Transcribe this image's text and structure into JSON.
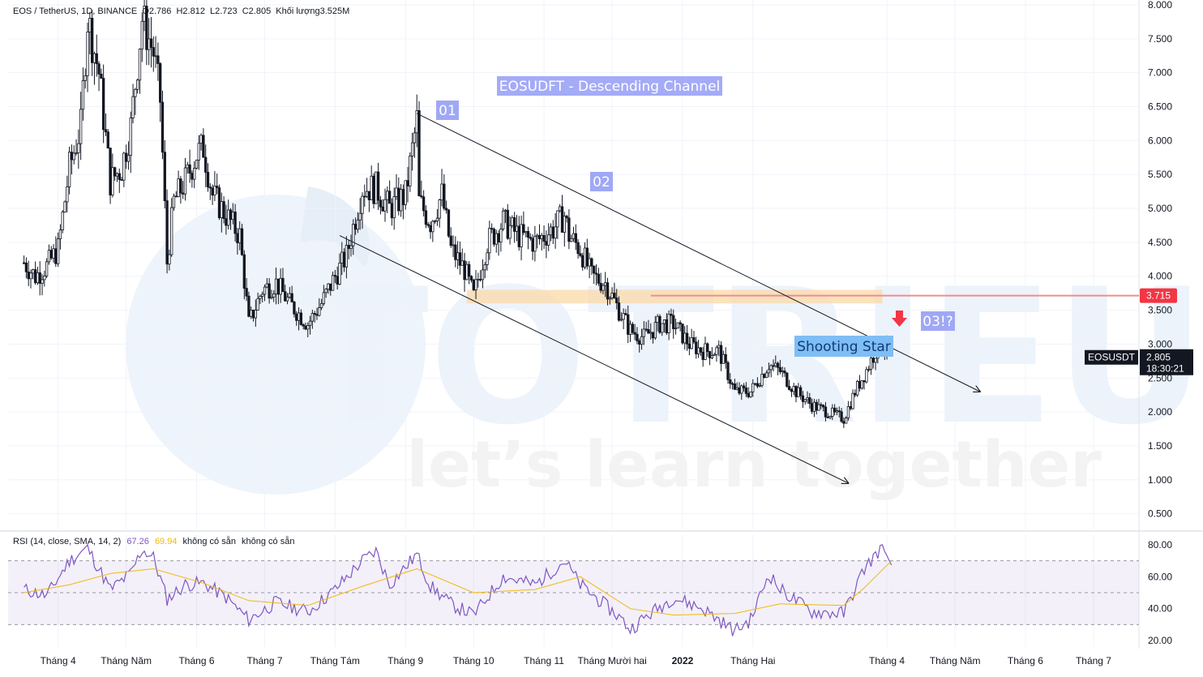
{
  "header": {
    "symbol_title": "EOS / TetherUS, 1D, BINANCE",
    "open": "O2.786",
    "high": "H2.812",
    "low": "L2.723",
    "close": "C2.805",
    "volume": "Khối lượng3.525M"
  },
  "rsi_header": {
    "label": "RSI (14, close, SMA, 14, 2)",
    "value": "67.26",
    "sma_value": "69.94",
    "na1": "không có sẵn",
    "na2": "không có sẵn"
  },
  "annotations": {
    "channel_title": "EOSUDFT - Descending Channel",
    "point1": "01",
    "point2": "02",
    "point3": "03!?",
    "shooting_star": "Shooting Star"
  },
  "price_labels": {
    "resistance": "3.715",
    "symbol": "EOSUSDT",
    "last_price": "2.805",
    "countdown": "18:30:21"
  },
  "watermark": {
    "brand": "TOTRIEU",
    "slogan": "let’s learn together"
  },
  "colors": {
    "up": "#131722",
    "down": "#131722",
    "resistance_line": "#f28b8b",
    "resistance_label": "#f23645",
    "zone": "#f9d9a8",
    "rsi_line": "#7e57c2",
    "rsi_sma": "#f0b90b",
    "label_bg": "#9fa8f5",
    "label_text": "#ffffff",
    "arrow_red": "#f23645"
  },
  "chart_data": [
    {
      "type": "candlestick",
      "title": "EOS / TetherUS, 1D, BINANCE",
      "x_labels": [
        "Tháng 4",
        "Tháng Năm",
        "Tháng 6",
        "Tháng 7",
        "Tháng Tám",
        "Tháng 9",
        "Tháng 10",
        "Tháng 11",
        "Tháng Mười hai",
        "2022",
        "Tháng Hai",
        "Tháng 4",
        "Tháng Năm",
        "Tháng 6",
        "Tháng 7"
      ],
      "y_ticks": [
        "8.000",
        "7.500",
        "7.000",
        "6.500",
        "6.000",
        "5.500",
        "5.000",
        "4.500",
        "4.000",
        "3.500",
        "3.000",
        "2.500",
        "2.000",
        "1.500",
        "1.000",
        "0.500"
      ],
      "ylim": [
        0.4,
        8.0
      ],
      "price_path": [
        [
          "2021-03-17",
          4.2
        ],
        [
          "2021-03-22",
          4.0
        ],
        [
          "2021-03-27",
          4.15
        ],
        [
          "2021-04-01",
          4.4
        ],
        [
          "2021-04-06",
          5.6
        ],
        [
          "2021-04-11",
          6.2
        ],
        [
          "2021-04-14",
          7.8
        ],
        [
          "2021-04-19",
          7.0
        ],
        [
          "2021-04-24",
          5.4
        ],
        [
          "2021-04-29",
          5.6
        ],
        [
          "2021-05-03",
          6.2
        ],
        [
          "2021-05-08",
          7.8
        ],
        [
          "2021-05-13",
          7.3
        ],
        [
          "2021-05-16",
          6.6
        ],
        [
          "2021-05-19",
          4.2
        ],
        [
          "2021-05-22",
          5.1
        ],
        [
          "2021-05-27",
          5.4
        ],
        [
          "2021-06-01",
          5.8
        ],
        [
          "2021-06-04",
          5.9
        ],
        [
          "2021-06-08",
          5.2
        ],
        [
          "2021-06-14",
          4.9
        ],
        [
          "2021-06-20",
          4.6
        ],
        [
          "2021-06-24",
          3.3
        ],
        [
          "2021-06-30",
          3.8
        ],
        [
          "2021-07-06",
          3.9
        ],
        [
          "2021-07-12",
          3.6
        ],
        [
          "2021-07-20",
          3.3
        ],
        [
          "2021-07-26",
          3.6
        ],
        [
          "2021-08-01",
          4.0
        ],
        [
          "2021-08-06",
          4.3
        ],
        [
          "2021-08-13",
          5.3
        ],
        [
          "2021-08-19",
          5.3
        ],
        [
          "2021-08-25",
          5.0
        ],
        [
          "2021-09-01",
          5.2
        ],
        [
          "2021-09-06",
          6.3
        ],
        [
          "2021-09-07",
          5.1
        ],
        [
          "2021-09-12",
          4.8
        ],
        [
          "2021-09-17",
          5.2
        ],
        [
          "2021-09-21",
          4.4
        ],
        [
          "2021-09-27",
          4.1
        ],
        [
          "2021-10-01",
          3.7
        ],
        [
          "2021-10-07",
          4.5
        ],
        [
          "2021-10-14",
          4.8
        ],
        [
          "2021-10-21",
          4.6
        ],
        [
          "2021-10-28",
          4.5
        ],
        [
          "2021-11-05",
          4.7
        ],
        [
          "2021-11-10",
          4.9
        ],
        [
          "2021-11-12",
          4.6
        ],
        [
          "2021-11-17",
          4.4
        ],
        [
          "2021-11-22",
          4.0
        ],
        [
          "2021-11-28",
          3.9
        ],
        [
          "2021-12-04",
          3.5
        ],
        [
          "2021-12-09",
          3.2
        ],
        [
          "2021-12-15",
          3.1
        ],
        [
          "2021-12-22",
          3.3
        ],
        [
          "2021-12-28",
          3.3
        ],
        [
          "2022-01-04",
          3.0
        ],
        [
          "2022-01-10",
          2.9
        ],
        [
          "2022-01-17",
          2.9
        ],
        [
          "2022-01-24",
          2.3
        ],
        [
          "2022-01-31",
          2.3
        ],
        [
          "2022-02-08",
          2.7
        ],
        [
          "2022-02-13",
          2.6
        ],
        [
          "2022-02-20",
          2.3
        ],
        [
          "2022-02-27",
          2.1
        ],
        [
          "2022-03-06",
          2.0
        ],
        [
          "2022-03-13",
          1.9
        ],
        [
          "2022-03-18",
          2.3
        ],
        [
          "2022-03-22",
          2.55
        ],
        [
          "2022-03-27",
          2.9
        ],
        [
          "2022-03-30",
          3.0
        ],
        [
          "2022-04-03",
          2.805
        ]
      ],
      "channel_upper": [
        [
          "2021-09-06",
          6.4
        ],
        [
          "2022-05-12",
          2.3
        ]
      ],
      "channel_lower": [
        [
          "2021-08-03",
          4.6
        ],
        [
          "2022-03-15",
          0.95
        ]
      ],
      "resistance_level": 3.715,
      "support_zone": [
        3.6,
        3.8
      ],
      "last_price": 2.805
    },
    {
      "type": "line",
      "title": "RSI (14, close, SMA, 14, 2)",
      "y_ticks": [
        "80.00",
        "60.00",
        "40.00",
        "20.00"
      ],
      "ylim": [
        17,
        83
      ],
      "bands": [
        70,
        50,
        30
      ],
      "series": [
        {
          "name": "RSI",
          "values": [
            [
              "2021-03-17",
              52
            ],
            [
              "2021-03-27",
              48
            ],
            [
              "2021-04-06",
              70
            ],
            [
              "2021-04-14",
              78
            ],
            [
              "2021-04-24",
              52
            ],
            [
              "2021-05-03",
              62
            ],
            [
              "2021-05-08",
              77
            ],
            [
              "2021-05-13",
              72
            ],
            [
              "2021-05-19",
              46
            ],
            [
              "2021-05-27",
              55
            ],
            [
              "2021-06-04",
              56
            ],
            [
              "2021-06-14",
              47
            ],
            [
              "2021-06-24",
              33
            ],
            [
              "2021-07-06",
              44
            ],
            [
              "2021-07-20",
              38
            ],
            [
              "2021-08-01",
              52
            ],
            [
              "2021-08-13",
              70
            ],
            [
              "2021-08-19",
              76
            ],
            [
              "2021-08-25",
              55
            ],
            [
              "2021-09-06",
              74
            ],
            [
              "2021-09-12",
              54
            ],
            [
              "2021-09-21",
              43
            ],
            [
              "2021-10-01",
              36
            ],
            [
              "2021-10-14",
              60
            ],
            [
              "2021-10-28",
              55
            ],
            [
              "2021-11-10",
              70
            ],
            [
              "2021-11-17",
              55
            ],
            [
              "2021-12-04",
              35
            ],
            [
              "2021-12-09",
              27
            ],
            [
              "2021-12-15",
              34
            ],
            [
              "2021-12-28",
              47
            ],
            [
              "2022-01-10",
              40
            ],
            [
              "2022-01-24",
              26
            ],
            [
              "2022-01-31",
              33
            ],
            [
              "2022-02-08",
              62
            ],
            [
              "2022-02-13",
              52
            ],
            [
              "2022-02-27",
              38
            ],
            [
              "2022-03-13",
              37
            ],
            [
              "2022-03-22",
              65
            ],
            [
              "2022-03-30",
              79
            ],
            [
              "2022-04-03",
              67.26
            ]
          ]
        },
        {
          "name": "RSI-based MA",
          "values": [
            [
              "2021-03-17",
              50
            ],
            [
              "2021-04-06",
              55
            ],
            [
              "2021-04-24",
              62
            ],
            [
              "2021-05-13",
              65
            ],
            [
              "2021-06-04",
              56
            ],
            [
              "2021-06-24",
              45
            ],
            [
              "2021-07-20",
              42
            ],
            [
              "2021-08-13",
              54
            ],
            [
              "2021-09-06",
              65
            ],
            [
              "2021-10-01",
              50
            ],
            [
              "2021-10-28",
              52
            ],
            [
              "2021-11-17",
              60
            ],
            [
              "2021-12-09",
              40
            ],
            [
              "2021-12-28",
              36
            ],
            [
              "2022-01-24",
              37
            ],
            [
              "2022-02-13",
              43
            ],
            [
              "2022-03-13",
              42
            ],
            [
              "2022-03-22",
              53
            ],
            [
              "2022-04-03",
              69.94
            ]
          ]
        }
      ]
    }
  ]
}
